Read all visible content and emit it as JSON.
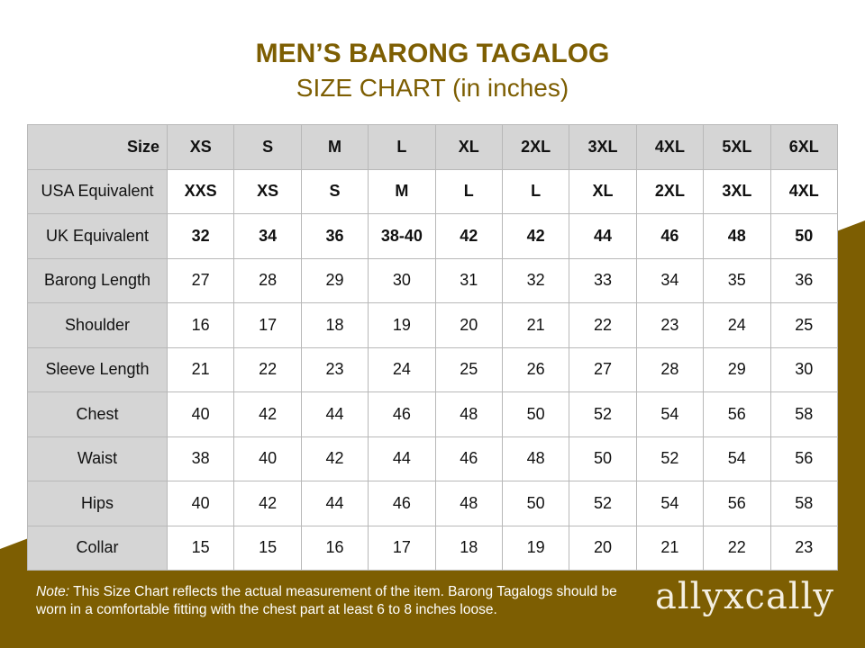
{
  "header": {
    "title": "MEN’S BARONG TAGALOG",
    "subtitle": "SIZE CHART (in inches)"
  },
  "colors": {
    "brand_gold": "#7d5e02",
    "header_gray": "#d5d5d5"
  },
  "table": {
    "corner_label": "Size",
    "sizes": [
      "XS",
      "S",
      "M",
      "L",
      "XL",
      "2XL",
      "3XL",
      "4XL",
      "5XL",
      "6XL"
    ],
    "rows": [
      {
        "label": "USA Equivalent",
        "bold": true,
        "values": [
          "XXS",
          "XS",
          "S",
          "M",
          "L",
          "L",
          "XL",
          "2XL",
          "3XL",
          "4XL"
        ]
      },
      {
        "label": "UK Equivalent",
        "bold": true,
        "values": [
          "32",
          "34",
          "36",
          "38-40",
          "42",
          "42",
          "44",
          "46",
          "48",
          "50"
        ]
      },
      {
        "label": "Barong Length",
        "bold": false,
        "values": [
          "27",
          "28",
          "29",
          "30",
          "31",
          "32",
          "33",
          "34",
          "35",
          "36"
        ]
      },
      {
        "label": "Shoulder",
        "bold": false,
        "values": [
          "16",
          "17",
          "18",
          "19",
          "20",
          "21",
          "22",
          "23",
          "24",
          "25"
        ]
      },
      {
        "label": "Sleeve Length",
        "bold": false,
        "values": [
          "21",
          "22",
          "23",
          "24",
          "25",
          "26",
          "27",
          "28",
          "29",
          "30"
        ]
      },
      {
        "label": "Chest",
        "bold": false,
        "values": [
          "40",
          "42",
          "44",
          "46",
          "48",
          "50",
          "52",
          "54",
          "56",
          "58"
        ]
      },
      {
        "label": "Waist",
        "bold": false,
        "values": [
          "38",
          "40",
          "42",
          "44",
          "46",
          "48",
          "50",
          "52",
          "54",
          "56"
        ]
      },
      {
        "label": "Hips",
        "bold": false,
        "values": [
          "40",
          "42",
          "44",
          "46",
          "48",
          "50",
          "52",
          "54",
          "56",
          "58"
        ]
      },
      {
        "label": "Collar",
        "bold": false,
        "values": [
          "15",
          "15",
          "16",
          "17",
          "18",
          "19",
          "20",
          "21",
          "22",
          "23"
        ]
      }
    ]
  },
  "note": {
    "prefix": "Note:",
    "text": " This Size Chart reflects the actual measurement of the item. Barong Tagalogs should be worn in a comfortable fitting with the chest part at least 6 to 8 inches loose."
  },
  "brand": {
    "logo_text": "allyxcally"
  }
}
